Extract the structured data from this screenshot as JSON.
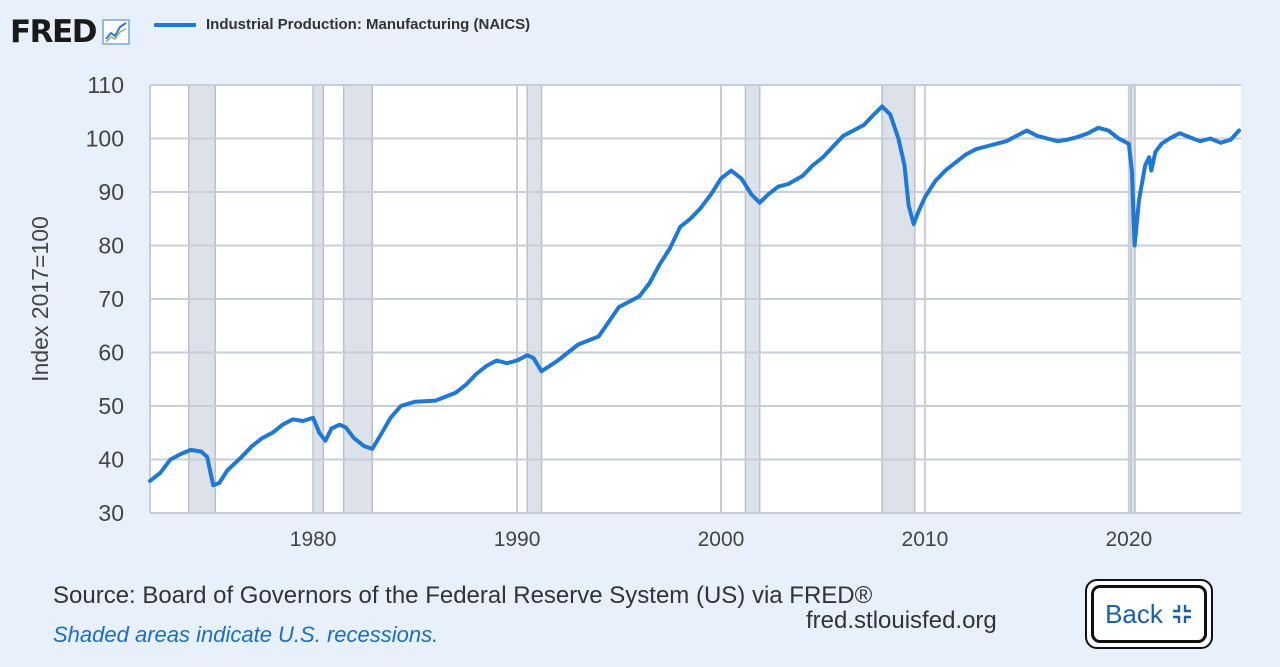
{
  "header": {
    "logo_text": "FRED",
    "legend_label": "Industrial Production: Manufacturing (NAICS)"
  },
  "footer": {
    "source": "Source: Board of Governors of the Federal Reserve System (US) via FRED®",
    "note": "Shaded areas indicate U.S. recessions.",
    "url": "fred.stlouisfed.org",
    "back_label": "Back"
  },
  "colors": {
    "line": "#1f77d6",
    "recession": "#dde2ea",
    "background": "#e8f0fb"
  },
  "chart_data": {
    "type": "line",
    "title": "",
    "xlabel": "",
    "ylabel": "Index 2017=100",
    "xlim": [
      1972.0,
      2025.5
    ],
    "ylim": [
      30,
      110
    ],
    "yticks": [
      30,
      40,
      50,
      60,
      70,
      80,
      90,
      100,
      110
    ],
    "xticks": [
      1980,
      1990,
      2000,
      2010,
      2020
    ],
    "grid": true,
    "legend_position": "top",
    "recessions": [
      [
        1973.9,
        1975.2
      ],
      [
        1980.0,
        1980.5
      ],
      [
        1981.5,
        1982.9
      ],
      [
        1990.5,
        1991.2
      ],
      [
        2001.2,
        2001.9
      ],
      [
        2007.9,
        2009.5
      ],
      [
        2020.1,
        2020.3
      ]
    ],
    "series": [
      {
        "name": "Industrial Production: Manufacturing (NAICS)",
        "x": [
          1972.0,
          1972.5,
          1973.0,
          1973.5,
          1974.0,
          1974.5,
          1974.8,
          1975.1,
          1975.4,
          1975.8,
          1976.5,
          1977.0,
          1977.5,
          1978.0,
          1978.5,
          1979.0,
          1979.5,
          1980.0,
          1980.3,
          1980.6,
          1980.9,
          1981.3,
          1981.6,
          1982.0,
          1982.5,
          1982.9,
          1983.3,
          1983.8,
          1984.3,
          1985.0,
          1986.0,
          1987.0,
          1987.5,
          1988.0,
          1988.5,
          1989.0,
          1989.5,
          1990.0,
          1990.5,
          1990.8,
          1991.2,
          1991.6,
          1992.0,
          1992.5,
          1993.0,
          1994.0,
          1995.0,
          1996.0,
          1996.5,
          1997.0,
          1997.5,
          1998.0,
          1998.5,
          1999.0,
          1999.5,
          2000.0,
          2000.5,
          2001.0,
          2001.5,
          2001.9,
          2002.3,
          2002.8,
          2003.3,
          2004.0,
          2004.5,
          2005.0,
          2005.5,
          2006.0,
          2006.5,
          2007.0,
          2007.5,
          2007.9,
          2008.3,
          2008.7,
          2009.0,
          2009.2,
          2009.45,
          2009.7,
          2010.0,
          2010.5,
          2011.0,
          2011.5,
          2012.0,
          2012.5,
          2013.0,
          2013.5,
          2014.0,
          2014.5,
          2015.0,
          2015.5,
          2016.0,
          2016.5,
          2017.0,
          2017.5,
          2018.0,
          2018.5,
          2019.0,
          2019.5,
          2020.0,
          2020.15,
          2020.28,
          2020.5,
          2020.8,
          2021.0,
          2021.1,
          2021.3,
          2021.6,
          2022.0,
          2022.5,
          2023.0,
          2023.5,
          2024.0,
          2024.5,
          2025.0,
          2025.4
        ],
        "values": [
          36.0,
          37.5,
          40.0,
          41.0,
          41.8,
          41.5,
          40.5,
          35.2,
          35.6,
          38.0,
          40.5,
          42.5,
          44.0,
          45.0,
          46.5,
          47.5,
          47.2,
          47.8,
          45.0,
          43.5,
          45.8,
          46.5,
          46.0,
          44.0,
          42.5,
          42.0,
          44.5,
          47.8,
          50.0,
          50.8,
          51.0,
          52.5,
          54.0,
          56.0,
          57.5,
          58.5,
          58.0,
          58.5,
          59.5,
          59.0,
          56.5,
          57.5,
          58.5,
          60.0,
          61.5,
          63.0,
          68.5,
          70.5,
          73.0,
          76.5,
          79.5,
          83.5,
          85.0,
          87.0,
          89.5,
          92.5,
          94.0,
          92.5,
          89.5,
          88.0,
          89.5,
          91.0,
          91.5,
          93.0,
          95.0,
          96.5,
          98.5,
          100.5,
          101.5,
          102.5,
          104.5,
          106.0,
          104.5,
          100.0,
          95.0,
          87.5,
          84.0,
          86.5,
          89.0,
          92.0,
          94.0,
          95.5,
          97.0,
          98.0,
          98.5,
          99.0,
          99.5,
          100.5,
          101.5,
          100.5,
          100.0,
          99.5,
          99.8,
          100.3,
          101.0,
          102.0,
          101.5,
          100.0,
          99.0,
          94.0,
          80.0,
          88.5,
          95.0,
          96.5,
          94.0,
          97.5,
          99.0,
          100.0,
          101.0,
          100.2,
          99.5,
          100.0,
          99.2,
          99.8,
          101.5
        ]
      }
    ]
  }
}
